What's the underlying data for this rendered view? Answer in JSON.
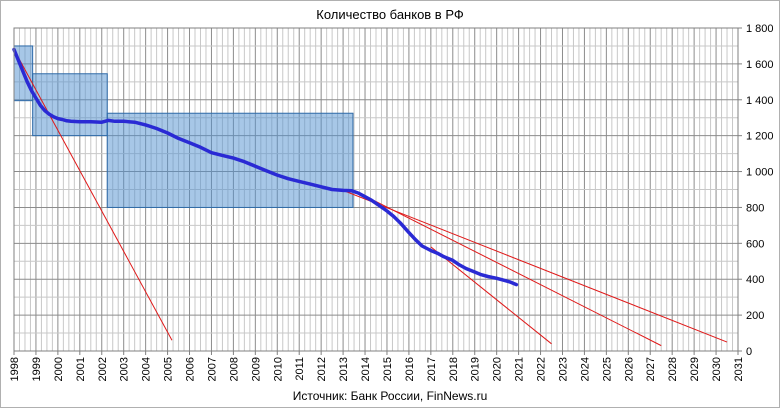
{
  "chart_data": {
    "type": "line",
    "title": "Количество банков  в РФ",
    "source": "Источник: Банк России, FinNews.ru",
    "xlabel": "",
    "ylabel": "",
    "xlim": [
      1998,
      2031
    ],
    "ylim": [
      0,
      1800
    ],
    "x_ticks": [
      1998,
      1999,
      2000,
      2001,
      2002,
      2003,
      2004,
      2005,
      2006,
      2007,
      2008,
      2009,
      2010,
      2011,
      2012,
      2013,
      2014,
      2015,
      2016,
      2017,
      2018,
      2019,
      2020,
      2021,
      2022,
      2023,
      2024,
      2025,
      2026,
      2027,
      2028,
      2029,
      2030,
      2031
    ],
    "y_ticks": [
      0,
      200,
      400,
      600,
      800,
      1000,
      1200,
      1400,
      1600,
      1800
    ],
    "y_tick_labels": [
      "0",
      "200",
      "400",
      "600",
      "800",
      "1 000",
      "1 200",
      "1 400",
      "1 600",
      "1 800"
    ],
    "y_axis_side": "right",
    "grid": true,
    "series": [
      {
        "color": "#2a2ad4",
        "x": [
          1998.0,
          1998.2,
          1998.4,
          1998.6,
          1998.8,
          1999.0,
          1999.2,
          1999.4,
          1999.6,
          1999.8,
          2000.0,
          2000.2,
          2000.4,
          2000.6,
          2000.8,
          2001.0,
          2001.5,
          2002.0,
          2002.3,
          2002.6,
          2003.0,
          2003.5,
          2004.0,
          2004.5,
          2005.0,
          2005.5,
          2006.0,
          2006.5,
          2007.0,
          2007.5,
          2008.0,
          2008.5,
          2009.0,
          2009.5,
          2010.0,
          2010.5,
          2011.0,
          2011.5,
          2012.0,
          2012.5,
          2013.0,
          2013.4,
          2013.7,
          2014.0,
          2014.3,
          2014.6,
          2015.0,
          2015.3,
          2015.6,
          2016.0,
          2016.3,
          2016.6,
          2017.0,
          2017.3,
          2017.6,
          2018.0,
          2018.3,
          2018.6,
          2019.0,
          2019.3,
          2019.6,
          2020.0,
          2020.3,
          2020.6,
          2020.9
        ],
        "y": [
          1680,
          1620,
          1560,
          1500,
          1450,
          1410,
          1370,
          1340,
          1320,
          1305,
          1295,
          1290,
          1283,
          1280,
          1279,
          1278,
          1277,
          1275,
          1285,
          1280,
          1280,
          1275,
          1260,
          1240,
          1215,
          1185,
          1160,
          1135,
          1105,
          1090,
          1075,
          1055,
          1030,
          1005,
          980,
          960,
          945,
          930,
          915,
          900,
          895,
          893,
          880,
          860,
          840,
          815,
          780,
          750,
          715,
          660,
          620,
          585,
          560,
          545,
          525,
          505,
          480,
          460,
          440,
          425,
          415,
          405,
          395,
          385,
          370
        ]
      }
    ],
    "trend_lines": [
      {
        "color": "#e01818",
        "x": [
          1998.0,
          2005.2
        ],
        "y": [
          1680,
          60
        ]
      },
      {
        "color": "#e01818",
        "x": [
          2013.0,
          2030.5
        ],
        "y": [
          895,
          50
        ]
      },
      {
        "color": "#e01818",
        "x": [
          2013.5,
          2027.5
        ],
        "y": [
          895,
          30
        ]
      },
      {
        "color": "#e01818",
        "x": [
          2017.0,
          2022.5
        ],
        "y": [
          580,
          40
        ]
      }
    ],
    "highlight_boxes": [
      {
        "color": "#4f8fcf",
        "x": [
          1998.0,
          1998.85
        ],
        "y": [
          1395,
          1700
        ]
      },
      {
        "color": "#4f8fcf",
        "x": [
          1998.85,
          2002.25
        ],
        "y": [
          1200,
          1545
        ]
      },
      {
        "color": "#4f8fcf",
        "x": [
          2002.25,
          2013.45
        ],
        "y": [
          800,
          1325
        ]
      }
    ]
  }
}
